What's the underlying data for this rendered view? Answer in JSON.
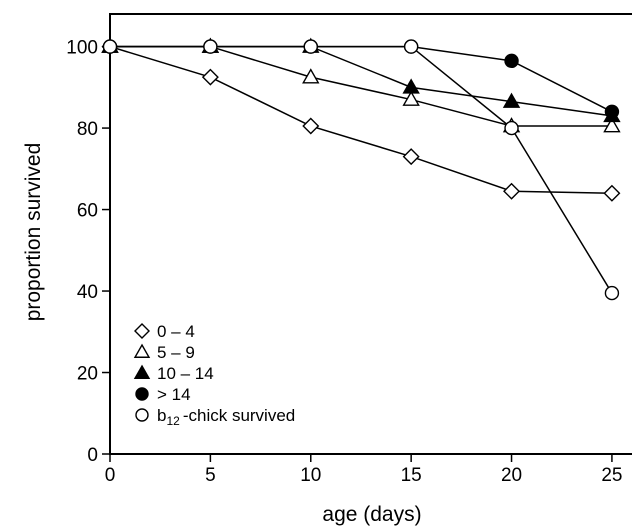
{
  "chart_data": {
    "type": "line",
    "xlabel": "age (days)",
    "ylabel": "proportion survived",
    "xlim": [
      0,
      26
    ],
    "ylim": [
      0,
      108
    ],
    "xticks": [
      0,
      5,
      10,
      15,
      20,
      25
    ],
    "yticks": [
      0,
      20,
      40,
      60,
      80,
      100
    ],
    "legend_position": "bottom-left",
    "series": [
      {
        "name": "0 – 4",
        "marker": "diamond-open",
        "x": [
          0,
          5,
          10,
          15,
          20,
          25
        ],
        "y": [
          100,
          92.5,
          80.5,
          73,
          64.5,
          64
        ]
      },
      {
        "name": "5 – 9",
        "marker": "triangle-open",
        "x": [
          0,
          5,
          10,
          15,
          20,
          25
        ],
        "y": [
          100,
          100,
          92.5,
          87,
          80.5,
          80.5
        ]
      },
      {
        "name": "10 – 14",
        "marker": "triangle-filled",
        "x": [
          0,
          5,
          10,
          15,
          20,
          25
        ],
        "y": [
          100,
          100,
          100,
          90,
          86.5,
          83
        ]
      },
      {
        "name": "> 14",
        "marker": "circle-filled",
        "x": [
          0,
          5,
          10,
          15,
          20,
          25
        ],
        "y": [
          100,
          100,
          100,
          100,
          96.5,
          84
        ]
      },
      {
        "name": "b12-chick survived",
        "name_main": "b",
        "name_sub": "12",
        "name_rest": "-chick survived",
        "marker": "circle-open",
        "x": [
          0,
          5,
          10,
          15,
          20,
          25
        ],
        "y": [
          100,
          100,
          100,
          100,
          80,
          39.5
        ]
      }
    ]
  }
}
